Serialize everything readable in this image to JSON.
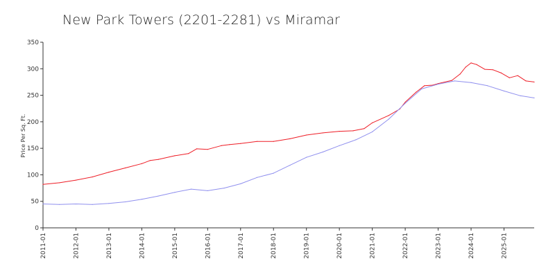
{
  "chart_data": {
    "type": "line",
    "title": "New Park Towers (2201-2281) vs Miramar",
    "xlabel": "",
    "ylabel": "Price Per Sq. Ft.",
    "ylim": [
      0,
      350
    ],
    "xlim": [
      "2011-01",
      "2025-12"
    ],
    "y_ticks": [
      0,
      50,
      100,
      150,
      200,
      250,
      300,
      350
    ],
    "x_ticks": [
      "2011-01",
      "2012-01",
      "2013-01",
      "2014-01",
      "2015-01",
      "2016-01",
      "2017-01",
      "2018-01",
      "2019-01",
      "2020-01",
      "2021-01",
      "2022-01",
      "2023-01",
      "2024-01",
      "2025-01"
    ],
    "grid": false,
    "series": [
      {
        "color": "#ee1c25",
        "x": [
          "2011-01",
          "2011-07",
          "2012-01",
          "2012-07",
          "2013-01",
          "2013-07",
          "2014-01",
          "2014-04",
          "2014-07",
          "2015-01",
          "2015-06",
          "2015-09",
          "2016-01",
          "2016-06",
          "2016-09",
          "2017-01",
          "2017-07",
          "2018-01",
          "2018-07",
          "2019-01",
          "2019-07",
          "2020-01",
          "2020-06",
          "2020-10",
          "2021-01",
          "2021-07",
          "2021-11",
          "2022-01",
          "2022-05",
          "2022-08",
          "2022-11",
          "2023-01",
          "2023-06",
          "2023-09",
          "2023-11",
          "2024-01",
          "2024-03",
          "2024-06",
          "2024-09",
          "2024-12",
          "2025-03",
          "2025-06",
          "2025-09",
          "2025-12"
        ],
        "values": [
          82,
          85,
          90,
          96,
          105,
          113,
          121,
          127,
          129,
          136,
          140,
          149,
          148,
          155,
          157,
          159,
          163,
          163,
          168,
          175,
          179,
          182,
          183,
          187,
          198,
          212,
          224,
          237,
          256,
          268,
          269,
          272,
          278,
          290,
          303,
          311,
          308,
          299,
          298,
          292,
          283,
          287,
          277,
          275
        ]
      },
      {
        "color": "#8f8fee",
        "x": [
          "2011-01",
          "2011-07",
          "2012-01",
          "2012-07",
          "2013-01",
          "2013-07",
          "2014-01",
          "2014-07",
          "2015-01",
          "2015-07",
          "2016-01",
          "2016-07",
          "2017-01",
          "2017-07",
          "2018-01",
          "2018-07",
          "2019-01",
          "2019-07",
          "2020-01",
          "2020-07",
          "2021-01",
          "2021-07",
          "2022-01",
          "2022-07",
          "2023-01",
          "2023-07",
          "2024-01",
          "2024-07",
          "2025-01",
          "2025-07",
          "2025-12"
        ],
        "values": [
          45,
          44,
          45,
          44,
          46,
          49,
          54,
          60,
          67,
          73,
          70,
          75,
          83,
          95,
          103,
          118,
          133,
          143,
          155,
          166,
          181,
          205,
          235,
          262,
          271,
          277,
          274,
          268,
          258,
          249,
          245
        ]
      }
    ]
  }
}
